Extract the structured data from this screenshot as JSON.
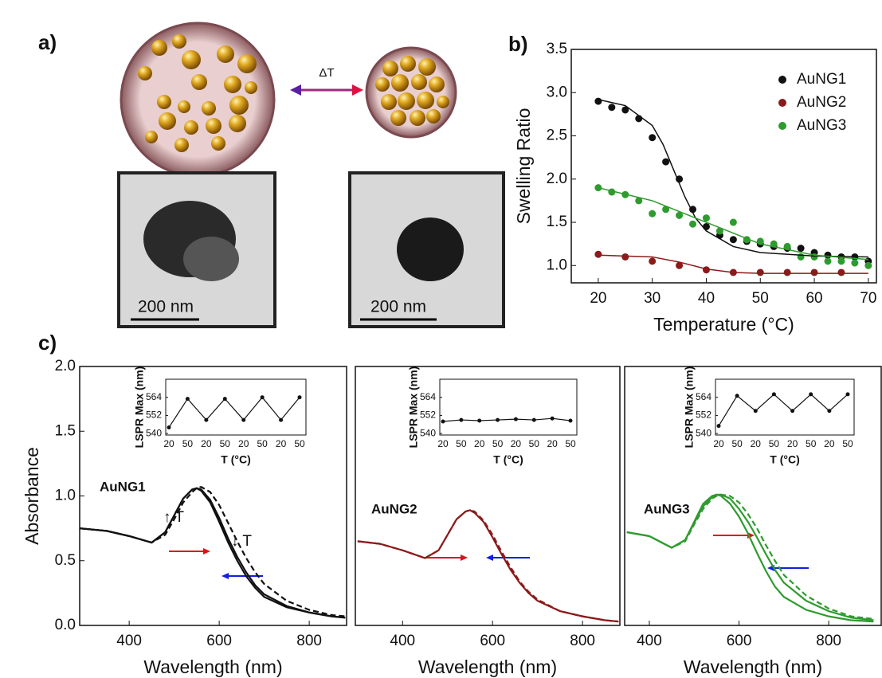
{
  "panel_labels": [
    "a)",
    "b)",
    "c)"
  ],
  "illustration": {
    "transition_label": "ΔT",
    "scale_bars": [
      "200 nm",
      "200 nm"
    ]
  },
  "chart_data": [
    {
      "type": "scatter",
      "xlabel": "Temperature (°C)",
      "ylabel": "Swelling Ratio",
      "xlim": [
        15,
        71.5
      ],
      "xticks": [
        20,
        30,
        40,
        50,
        60,
        70
      ],
      "ylim": [
        0.8,
        3.5
      ],
      "yticks": [
        {
          "value": 1,
          "label": "1.0"
        },
        1.5,
        {
          "value": 2,
          "label": "2.0"
        },
        2.5,
        {
          "value": 3,
          "label": "3.0"
        },
        3.5
      ],
      "legend": "upper right",
      "series": [
        {
          "name": "AuNG1",
          "color": "#111111",
          "mode": "markers",
          "x": [
            20,
            22.5,
            25,
            27.5,
            30,
            32.5,
            35,
            37.5,
            40,
            42.5,
            45,
            47.5,
            50,
            52.5,
            55,
            57.5,
            60,
            62.5,
            65,
            67.5,
            70
          ],
          "values": [
            2.9,
            2.83,
            2.8,
            2.7,
            2.48,
            2.2,
            2.0,
            1.65,
            1.45,
            1.35,
            1.3,
            1.28,
            1.25,
            1.22,
            1.2,
            1.2,
            1.15,
            1.12,
            1.1,
            1.1,
            1.05
          ]
        },
        {
          "name": "AuNG2",
          "color": "#8b1a1a",
          "mode": "markers",
          "x": [
            20,
            25,
            30,
            35,
            40,
            45,
            50,
            55,
            60,
            65
          ],
          "values": [
            1.13,
            1.1,
            1.05,
            1.0,
            0.95,
            0.92,
            0.92,
            0.92,
            0.92,
            0.92
          ]
        },
        {
          "name": "AuNG3",
          "color": "#2e9b2e",
          "mode": "markers",
          "x": [
            20,
            22.5,
            25,
            27.5,
            30,
            32.5,
            35,
            37.5,
            40,
            42.5,
            45,
            47.5,
            50,
            52.5,
            55,
            57.5,
            60,
            62.5,
            65,
            67.5,
            70
          ],
          "values": [
            1.9,
            1.85,
            1.82,
            1.75,
            1.6,
            1.65,
            1.58,
            1.48,
            1.55,
            1.4,
            1.5,
            1.3,
            1.28,
            1.25,
            1.22,
            1.1,
            1.1,
            1.05,
            1.05,
            1.03,
            1.0
          ]
        },
        {
          "color": "#111111",
          "mode": "line",
          "x": [
            20,
            25,
            30,
            32,
            34,
            36,
            38,
            40,
            45,
            50,
            60,
            70
          ],
          "values": [
            2.92,
            2.85,
            2.62,
            2.4,
            2.1,
            1.8,
            1.55,
            1.4,
            1.22,
            1.15,
            1.11,
            1.1
          ]
        },
        {
          "color": "#8b1a1a",
          "mode": "line",
          "x": [
            20,
            30,
            35,
            40,
            45,
            50,
            70
          ],
          "values": [
            1.12,
            1.1,
            1.04,
            0.96,
            0.92,
            0.91,
            0.91
          ]
        },
        {
          "color": "#2e9b2e",
          "mode": "line",
          "x": [
            20,
            30,
            40,
            50,
            60,
            70
          ],
          "values": [
            1.9,
            1.75,
            1.5,
            1.25,
            1.12,
            1.07
          ]
        }
      ]
    },
    {
      "type": "line",
      "label": "AuNG1",
      "label_color": "#111111",
      "annotations": [
        "↑ T",
        "↓ T"
      ],
      "xlabel": "Wavelength (nm)",
      "ylabel": "Absorbance",
      "xlim": [
        290,
        883
      ],
      "xticks": [
        400,
        600,
        800
      ],
      "ylim": [
        0,
        2
      ],
      "yticks": [
        {
          "value": 0,
          "label": "0.0"
        },
        0.5,
        {
          "value": 1,
          "label": "1.0"
        },
        1.5,
        {
          "value": 2,
          "label": "2.0"
        }
      ],
      "x": [
        290,
        350,
        400,
        450,
        480,
        500,
        520,
        540,
        550,
        560,
        580,
        600,
        620,
        640,
        660,
        680,
        700,
        750,
        800,
        850,
        880
      ],
      "series": [
        {
          "color": "#111111",
          "dash": false,
          "values": [
            0.75,
            0.73,
            0.69,
            0.64,
            0.72,
            0.85,
            0.98,
            1.05,
            1.06,
            1.04,
            0.95,
            0.8,
            0.64,
            0.5,
            0.38,
            0.29,
            0.22,
            0.14,
            0.1,
            0.07,
            0.06
          ]
        },
        {
          "color": "#111111",
          "dash": false,
          "values": [
            0.75,
            0.73,
            0.69,
            0.64,
            0.72,
            0.85,
            0.98,
            1.05,
            1.06,
            1.05,
            0.97,
            0.83,
            0.67,
            0.53,
            0.41,
            0.31,
            0.24,
            0.15,
            0.1,
            0.07,
            0.06
          ]
        },
        {
          "color": "#111111",
          "dash": true,
          "values": [
            0.75,
            0.73,
            0.69,
            0.64,
            0.7,
            0.82,
            0.95,
            1.03,
            1.06,
            1.07,
            1.03,
            0.93,
            0.79,
            0.65,
            0.52,
            0.41,
            0.32,
            0.19,
            0.12,
            0.08,
            0.07
          ]
        }
      ]
    },
    {
      "type": "line",
      "label": "AuNG2",
      "label_color": "#a01010",
      "xlabel": "Wavelength (nm)",
      "xlim": [
        295,
        883
      ],
      "xticks": [
        400,
        600,
        800
      ],
      "ylim": [
        0,
        2
      ],
      "x": [
        300,
        350,
        400,
        450,
        480,
        500,
        520,
        540,
        550,
        560,
        580,
        600,
        620,
        640,
        660,
        680,
        700,
        750,
        800,
        850,
        880
      ],
      "series": [
        {
          "color": "#8b1a1a",
          "dash": false,
          "values": [
            0.65,
            0.63,
            0.58,
            0.52,
            0.58,
            0.7,
            0.82,
            0.88,
            0.89,
            0.87,
            0.8,
            0.68,
            0.55,
            0.43,
            0.33,
            0.25,
            0.19,
            0.11,
            0.07,
            0.04,
            0.03
          ]
        },
        {
          "color": "#8b1a1a",
          "dash": true,
          "values": [
            0.65,
            0.63,
            0.58,
            0.52,
            0.58,
            0.7,
            0.82,
            0.88,
            0.89,
            0.88,
            0.81,
            0.7,
            0.57,
            0.45,
            0.34,
            0.26,
            0.2,
            0.11,
            0.07,
            0.04,
            0.03
          ]
        }
      ]
    },
    {
      "type": "line",
      "label": "AuNG3",
      "label_color": "#4f7a26",
      "xlabel": "Wavelength (nm)",
      "xlim": [
        345,
        917
      ],
      "xticks": [
        400,
        600,
        800
      ],
      "ylim": [
        0,
        2
      ],
      "x": [
        350,
        400,
        450,
        480,
        500,
        520,
        540,
        550,
        560,
        580,
        600,
        620,
        640,
        660,
        680,
        700,
        750,
        800,
        850,
        900
      ],
      "series": [
        {
          "color": "#2e9b2e",
          "dash": false,
          "values": [
            0.72,
            0.69,
            0.6,
            0.66,
            0.8,
            0.94,
            1.0,
            1.01,
            1.0,
            0.94,
            0.84,
            0.71,
            0.56,
            0.42,
            0.3,
            0.22,
            0.12,
            0.07,
            0.04,
            0.03
          ]
        },
        {
          "color": "#2e9b2e",
          "dash": false,
          "values": [
            0.72,
            0.69,
            0.6,
            0.66,
            0.79,
            0.92,
            0.99,
            1.01,
            1.01,
            0.98,
            0.9,
            0.8,
            0.68,
            0.55,
            0.43,
            0.33,
            0.19,
            0.11,
            0.06,
            0.04
          ]
        },
        {
          "color": "#2e9b2e",
          "dash": true,
          "values": [
            0.72,
            0.69,
            0.6,
            0.65,
            0.78,
            0.9,
            0.98,
            1.0,
            1.01,
            1.0,
            0.95,
            0.86,
            0.75,
            0.62,
            0.5,
            0.39,
            0.23,
            0.13,
            0.07,
            0.05
          ]
        }
      ]
    },
    {
      "type": "inset",
      "xlabel": "T (°C)",
      "ylabel": "LSPR Max (nm)",
      "color": "#111111",
      "categories": [
        "20",
        "50",
        "20",
        "50",
        "20",
        "50",
        "20",
        "50"
      ],
      "values": [
        544,
        563,
        549,
        563,
        549,
        564,
        549,
        564
      ],
      "ylim": [
        539,
        576
      ],
      "yticks": [
        540,
        552,
        564
      ]
    },
    {
      "type": "inset",
      "xlabel": "T (°C)",
      "ylabel": "LSPR Max (nm)",
      "color": "#111111",
      "categories": [
        "20",
        "50",
        "20",
        "50",
        "20",
        "50",
        "20",
        "50"
      ],
      "values": [
        548,
        549,
        548.5,
        549,
        549.5,
        549,
        550,
        548.5
      ],
      "ylim": [
        539,
        576
      ],
      "yticks": [
        540,
        552,
        564
      ]
    },
    {
      "type": "inset",
      "xlabel": "T (°C)",
      "ylabel": "LSPR Max (nm)",
      "color": "#111111",
      "categories": [
        "20",
        "50",
        "20",
        "50",
        "20",
        "50",
        "20",
        "50"
      ],
      "values": [
        545,
        565,
        555,
        566,
        555,
        566,
        555,
        566
      ],
      "ylim": [
        539,
        576
      ],
      "yticks": [
        540,
        552,
        564
      ]
    }
  ]
}
